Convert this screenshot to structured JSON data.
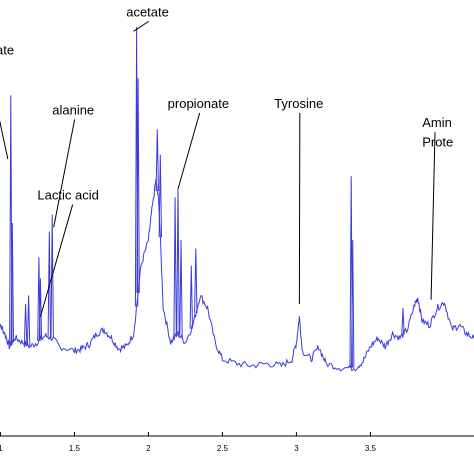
{
  "chart_data": {
    "type": "line",
    "title": "",
    "xlabel": "",
    "ylabel": "",
    "xlim": [
      0.97,
      4.2
    ],
    "ylim": [
      0,
      100
    ],
    "grid": false,
    "line_color": "#3b3bdc",
    "xticks": [
      {
        "value": 1.0,
        "label": "1"
      },
      {
        "value": 1.5,
        "label": "1.5"
      },
      {
        "value": 2.0,
        "label": "2"
      },
      {
        "value": 2.5,
        "label": "2.5"
      },
      {
        "value": 3.0,
        "label": "3"
      },
      {
        "value": 3.5,
        "label": "3.5"
      }
    ],
    "baseline": [
      [
        0.97,
        22.0
      ],
      [
        1.0,
        26.0
      ],
      [
        1.03,
        24.0
      ],
      [
        1.06,
        21.0
      ],
      [
        1.1,
        23.0
      ],
      [
        1.15,
        22.0
      ],
      [
        1.2,
        21.0
      ],
      [
        1.25,
        22.0
      ],
      [
        1.3,
        23.5
      ],
      [
        1.35,
        23.0
      ],
      [
        1.4,
        21.0
      ],
      [
        1.5,
        20.0
      ],
      [
        1.55,
        20.5
      ],
      [
        1.6,
        21.5
      ],
      [
        1.65,
        24.0
      ],
      [
        1.7,
        25.0
      ],
      [
        1.75,
        23.0
      ],
      [
        1.8,
        20.5
      ],
      [
        1.85,
        21.0
      ],
      [
        1.9,
        24.0
      ],
      [
        1.95,
        40.0
      ],
      [
        2.0,
        46.0
      ],
      [
        2.02,
        52.0
      ],
      [
        2.05,
        60.0
      ],
      [
        2.07,
        55.0
      ],
      [
        2.1,
        30.0
      ],
      [
        2.15,
        22.0
      ],
      [
        2.2,
        24.0
      ],
      [
        2.25,
        22.0
      ],
      [
        2.3,
        26.0
      ],
      [
        2.35,
        33.0
      ],
      [
        2.4,
        30.0
      ],
      [
        2.45,
        22.0
      ],
      [
        2.5,
        18.0
      ],
      [
        2.6,
        17.0
      ],
      [
        2.7,
        16.5
      ],
      [
        2.8,
        17.0
      ],
      [
        2.9,
        16.5
      ],
      [
        2.97,
        18.0
      ],
      [
        3.0,
        22.0
      ],
      [
        3.02,
        28.0
      ],
      [
        3.04,
        20.0
      ],
      [
        3.1,
        18.0
      ],
      [
        3.15,
        21.0
      ],
      [
        3.2,
        17.0
      ],
      [
        3.3,
        16.0
      ],
      [
        3.4,
        16.0
      ],
      [
        3.45,
        17.5
      ],
      [
        3.5,
        21.0
      ],
      [
        3.55,
        23.0
      ],
      [
        3.6,
        21.0
      ],
      [
        3.65,
        24.0
      ],
      [
        3.7,
        23.0
      ],
      [
        3.75,
        25.0
      ],
      [
        3.8,
        31.0
      ],
      [
        3.82,
        32.5
      ],
      [
        3.85,
        27.0
      ],
      [
        3.9,
        26.0
      ],
      [
        3.95,
        30.0
      ],
      [
        4.0,
        31.5
      ],
      [
        4.05,
        25.0
      ],
      [
        4.1,
        26.0
      ],
      [
        4.15,
        24.0
      ],
      [
        4.2,
        23.0
      ]
    ],
    "spikes": [
      {
        "x": 1.07,
        "y": 80.0
      },
      {
        "x": 1.08,
        "y": 50.0
      },
      {
        "x": 1.17,
        "y": 31.0
      },
      {
        "x": 1.19,
        "y": 33.0
      },
      {
        "x": 1.26,
        "y": 42.0
      },
      {
        "x": 1.27,
        "y": 37.0
      },
      {
        "x": 1.33,
        "y": 48.0
      },
      {
        "x": 1.35,
        "y": 52.0
      },
      {
        "x": 1.92,
        "y": 96.0
      },
      {
        "x": 1.93,
        "y": 84.0
      },
      {
        "x": 2.06,
        "y": 72.0
      },
      {
        "x": 2.08,
        "y": 66.0
      },
      {
        "x": 2.18,
        "y": 56.0
      },
      {
        "x": 2.2,
        "y": 58.0
      },
      {
        "x": 2.22,
        "y": 46.0
      },
      {
        "x": 2.29,
        "y": 40.0
      },
      {
        "x": 2.32,
        "y": 44.0
      },
      {
        "x": 3.37,
        "y": 61.0
      },
      {
        "x": 3.38,
        "y": 46.0
      },
      {
        "x": 3.72,
        "y": 30.0
      }
    ],
    "annotations": [
      {
        "text": "ate",
        "x": 0.97,
        "y": 89.5,
        "tx": null,
        "ty": null
      },
      {
        "text": "acetate",
        "x": 1.85,
        "y": 98.5,
        "tx": 1.9,
        "ty": 95.0
      },
      {
        "text": "alanine",
        "x": 1.35,
        "y": 75.5,
        "tx": 1.36,
        "ty": 49.0
      },
      {
        "text": "propionate",
        "x": 2.13,
        "y": 77.0,
        "tx": 2.2,
        "ty": 58.0
      },
      {
        "text": "Tyrosine",
        "x": 2.85,
        "y": 77.0,
        "tx": 3.02,
        "ty": 31.0
      },
      {
        "text": "Lactic acid",
        "x": 1.25,
        "y": 55.5,
        "tx": 1.27,
        "ty": 28.0
      },
      {
        "text": "Amin",
        "x": 3.85,
        "y": 72.5,
        "tx": 3.91,
        "ty": 32.0
      },
      {
        "text": "Prote",
        "x": 3.85,
        "y": 68.0,
        "tx": null,
        "ty": null
      },
      {
        "text": "",
        "x": 0.97,
        "y": 78.0,
        "tx": 1.05,
        "ty": 65.0
      }
    ]
  }
}
